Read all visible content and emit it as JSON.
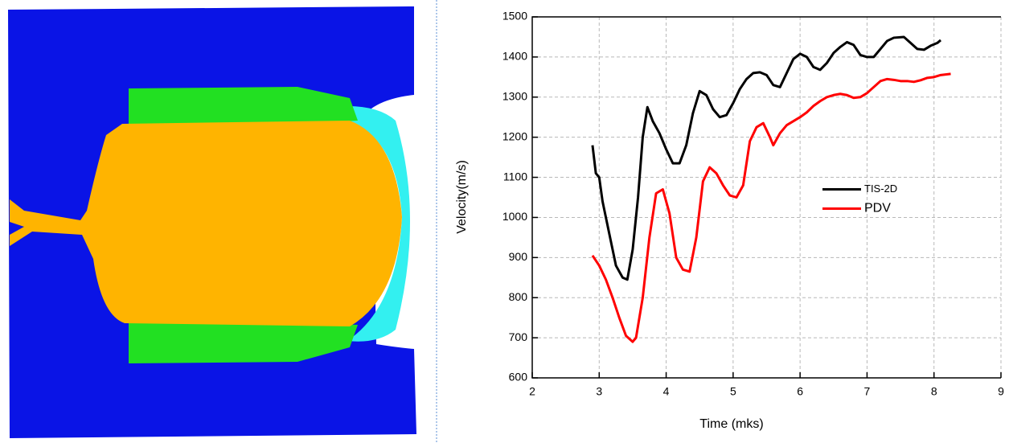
{
  "chart_data": {
    "type": "line",
    "xlabel": "Time (mks)",
    "ylabel": "Velocity(m/s)",
    "xlim": [
      2,
      9
    ],
    "xticks": [
      2,
      3,
      4,
      5,
      6,
      7,
      8,
      9
    ],
    "ylim": [
      600,
      1500
    ],
    "yticks": [
      600,
      700,
      800,
      900,
      1000,
      1100,
      1200,
      1300,
      1400,
      1500
    ],
    "grid": true,
    "legend_loc": "center right",
    "series": [
      {
        "name": "TIS-2D",
        "color": "#000000",
        "x": [
          2.9,
          2.95,
          3.0,
          3.05,
          3.15,
          3.25,
          3.35,
          3.42,
          3.5,
          3.58,
          3.65,
          3.72,
          3.8,
          3.9,
          4.0,
          4.1,
          4.2,
          4.3,
          4.4,
          4.5,
          4.6,
          4.7,
          4.8,
          4.9,
          5.0,
          5.1,
          5.2,
          5.3,
          5.4,
          5.5,
          5.6,
          5.7,
          5.8,
          5.9,
          6.0,
          6.1,
          6.2,
          6.3,
          6.4,
          6.5,
          6.6,
          6.7,
          6.8,
          6.9,
          7.0,
          7.1,
          7.2,
          7.3,
          7.4,
          7.55,
          7.65,
          7.75,
          7.85,
          7.95,
          8.05,
          8.1
        ],
        "values": [
          1180,
          1110,
          1100,
          1040,
          960,
          880,
          850,
          845,
          920,
          1050,
          1200,
          1275,
          1240,
          1210,
          1170,
          1135,
          1135,
          1180,
          1260,
          1315,
          1305,
          1270,
          1250,
          1255,
          1285,
          1320,
          1345,
          1360,
          1362,
          1355,
          1330,
          1325,
          1360,
          1395,
          1408,
          1400,
          1375,
          1368,
          1385,
          1410,
          1425,
          1437,
          1430,
          1405,
          1400,
          1400,
          1420,
          1440,
          1448,
          1450,
          1435,
          1420,
          1418,
          1428,
          1435,
          1442
        ]
      },
      {
        "name": "PDV",
        "color": "#ff0000",
        "x": [
          2.9,
          3.0,
          3.1,
          3.2,
          3.3,
          3.4,
          3.5,
          3.55,
          3.65,
          3.75,
          3.85,
          3.95,
          4.05,
          4.15,
          4.25,
          4.35,
          4.45,
          4.55,
          4.65,
          4.75,
          4.85,
          4.95,
          5.05,
          5.15,
          5.25,
          5.35,
          5.45,
          5.55,
          5.6,
          5.7,
          5.8,
          5.9,
          6.0,
          6.1,
          6.2,
          6.3,
          6.4,
          6.5,
          6.6,
          6.7,
          6.8,
          6.9,
          7.0,
          7.1,
          7.2,
          7.3,
          7.4,
          7.5,
          7.6,
          7.7,
          7.8,
          7.9,
          8.0,
          8.1,
          8.25
        ],
        "values": [
          905,
          880,
          845,
          800,
          750,
          705,
          690,
          700,
          800,
          950,
          1060,
          1070,
          1010,
          900,
          870,
          865,
          950,
          1090,
          1125,
          1110,
          1080,
          1055,
          1050,
          1080,
          1190,
          1225,
          1235,
          1200,
          1180,
          1210,
          1230,
          1240,
          1250,
          1262,
          1278,
          1290,
          1300,
          1305,
          1308,
          1305,
          1298,
          1300,
          1310,
          1325,
          1340,
          1345,
          1343,
          1340,
          1340,
          1338,
          1342,
          1348,
          1350,
          1355,
          1358
        ]
      }
    ]
  }
}
